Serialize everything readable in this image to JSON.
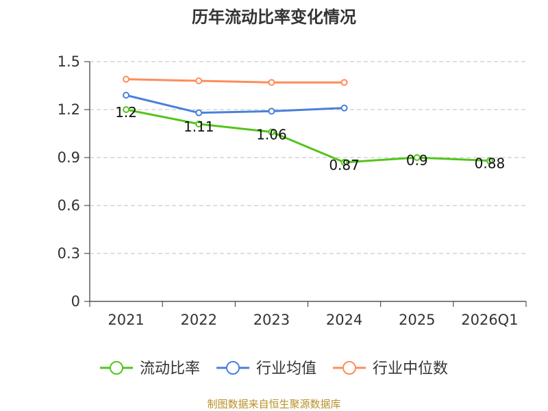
{
  "chart_data": {
    "type": "line",
    "title": "历年流动比率变化情况",
    "categories": [
      "2021",
      "2022",
      "2023",
      "2024",
      "2025",
      "2026Q1"
    ],
    "ylim": [
      0,
      1.5
    ],
    "yticks": [
      "0",
      "0.3",
      "0.6",
      "0.9",
      "1.2",
      "1.5"
    ],
    "grid": true,
    "legend_position": "bottom",
    "series": [
      {
        "name": "流动比率",
        "color": "#52c41a",
        "values": [
          1.2,
          1.11,
          1.06,
          0.87,
          0.9,
          0.88
        ],
        "labels": [
          "1.2",
          "1.11",
          "1.06",
          "0.87",
          "0.9",
          "0.88"
        ]
      },
      {
        "name": "行业均值",
        "color": "#4a7fdc",
        "values": [
          1.29,
          1.18,
          1.19,
          1.21,
          null,
          null
        ]
      },
      {
        "name": "行业中位数",
        "color": "#ff8c5a",
        "values": [
          1.39,
          1.38,
          1.37,
          1.37,
          null,
          null
        ]
      }
    ]
  },
  "footer": {
    "source": "制图数据来自恒生聚源数据库"
  }
}
